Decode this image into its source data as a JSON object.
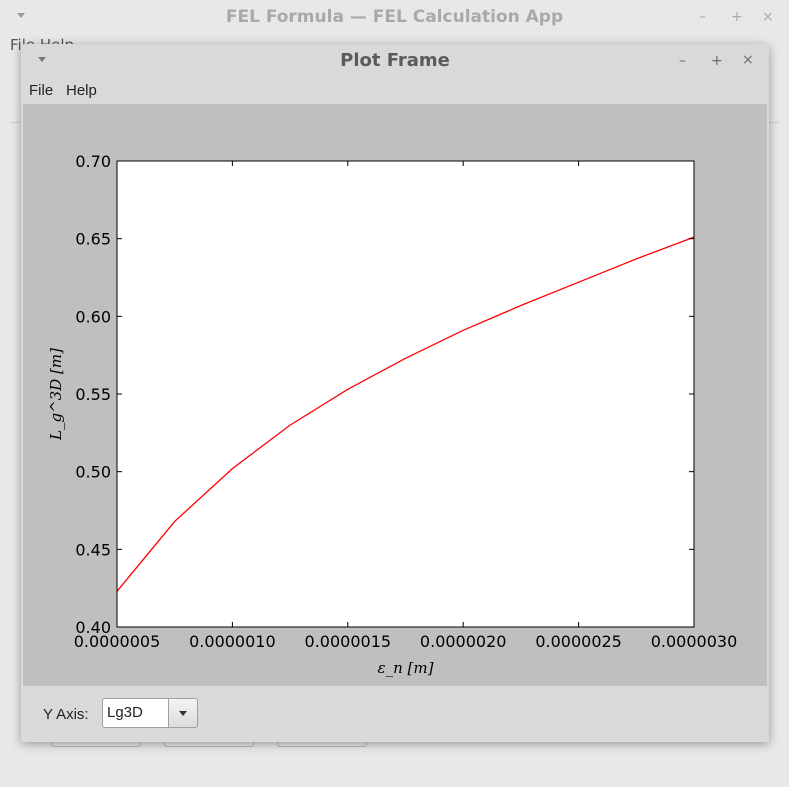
{
  "background_window": {
    "title": "FEL Formula — FEL Calculation App",
    "menu_text": "File Help",
    "controls": {
      "minimize": "–",
      "maximize": "+",
      "close": "×"
    }
  },
  "plot_window": {
    "title": "Plot Frame",
    "controls": {
      "minimize": "–",
      "maximize": "+",
      "close": "×"
    },
    "menu": {
      "file": "File",
      "help": "Help"
    },
    "yaxis_label": "Y Axis:",
    "yaxis_value": "Lg3D"
  },
  "chart_data": {
    "type": "line",
    "title": "",
    "xlabel": "ε_n [m]",
    "ylabel": "L_g^3D [m]",
    "xlim": [
      5e-07,
      3e-06
    ],
    "ylim": [
      0.4,
      0.7
    ],
    "xticks": [
      "0.0000005",
      "0.0000010",
      "0.0000015",
      "0.0000020",
      "0.0000025",
      "0.0000030"
    ],
    "yticks": [
      "0.40",
      "0.45",
      "0.50",
      "0.55",
      "0.60",
      "0.65",
      "0.70"
    ],
    "series": [
      {
        "color": "#ff0000",
        "x": [
          5e-07,
          7.5e-07,
          1e-06,
          1.25e-06,
          1.5e-06,
          1.75e-06,
          2e-06,
          2.25e-06,
          2.5e-06,
          2.75e-06,
          3e-06
        ],
        "y": [
          0.423,
          0.468,
          0.502,
          0.53,
          0.553,
          0.573,
          0.591,
          0.607,
          0.622,
          0.637,
          0.651
        ]
      }
    ],
    "grid": false
  }
}
